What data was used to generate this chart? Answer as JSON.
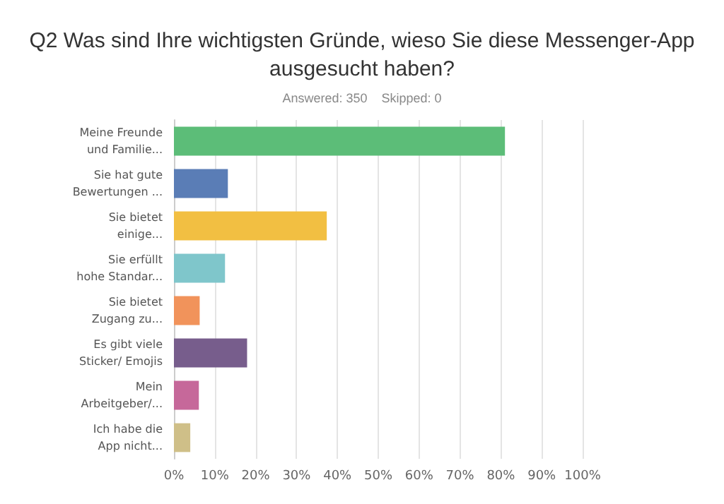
{
  "chart_data": {
    "type": "bar",
    "orientation": "horizontal",
    "title": "Q2 Was sind Ihre wichtigsten Gründe, wieso Sie diese Messenger-App\nausgesucht haben?",
    "subtitle": "Answered: 350    Skipped: 0",
    "categories": [
      "Meine Freunde\nund Familie...",
      "Sie hat gute\nBewertungen ...",
      "Sie bietet\neinige...",
      "Sie erfüllt\nhohe Standar...",
      "Sie bietet\nZugang zu...",
      "Es gibt viele\nSticker/ Emojis",
      "Mein\nArbeitgeber/...",
      "Ich habe die\nApp nicht..."
    ],
    "values": [
      81,
      13.2,
      37.4,
      12.5,
      6.3,
      17.9,
      6.1,
      4
    ],
    "colors": [
      "#5cbd78",
      "#5a7db6",
      "#f2bf42",
      "#7fc6cb",
      "#f1935b",
      "#775d8c",
      "#c6689a",
      "#cfbf88"
    ],
    "xlim": [
      0,
      100
    ],
    "xticks": [
      {
        "value": 0,
        "label": "0%"
      },
      {
        "value": 10,
        "label": "10%"
      },
      {
        "value": 20,
        "label": "20%"
      },
      {
        "value": 30,
        "label": "30%"
      },
      {
        "value": 40,
        "label": "40%"
      },
      {
        "value": 50,
        "label": "50%"
      },
      {
        "value": 60,
        "label": "60%"
      },
      {
        "value": 70,
        "label": "70%"
      },
      {
        "value": 80,
        "label": "80%"
      },
      {
        "value": 90,
        "label": "90%"
      },
      {
        "value": 100,
        "label": "100%"
      }
    ],
    "grid": "x"
  }
}
